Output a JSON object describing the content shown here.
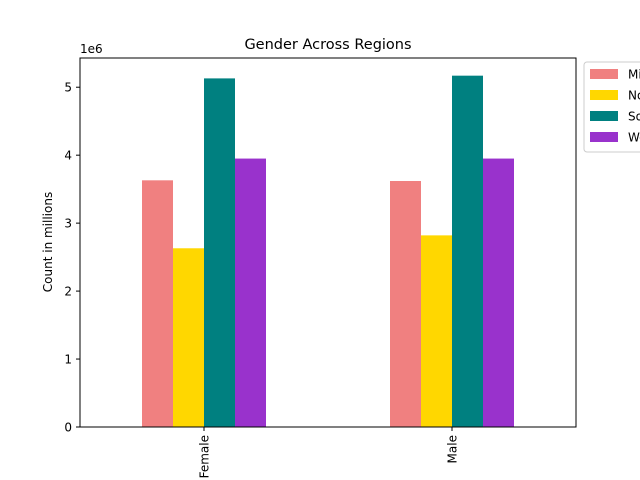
{
  "chart_data": {
    "type": "bar",
    "title": "Gender Across Regions",
    "xlabel": "",
    "ylabel": "Count in millions",
    "offset_text": "1e6",
    "categories": [
      "Female",
      "Male"
    ],
    "series": [
      {
        "name": "Midwest",
        "color": "#f08080",
        "values": [
          3630000,
          3620000
        ]
      },
      {
        "name": "Northeast",
        "color": "#ffd700",
        "values": [
          2630000,
          2820000
        ]
      },
      {
        "name": "South",
        "color": "#008080",
        "values": [
          5130000,
          5170000
        ]
      },
      {
        "name": "West",
        "color": "#9932cc",
        "values": [
          3950000,
          3950000
        ]
      }
    ],
    "ylim": [
      0,
      5430000
    ],
    "yticks": [
      0,
      1000000,
      2000000,
      3000000,
      4000000,
      5000000
    ],
    "ytick_labels": [
      "0",
      "1",
      "2",
      "3",
      "4",
      "5"
    ],
    "grid": false,
    "legend_position": "outside upper right"
  }
}
